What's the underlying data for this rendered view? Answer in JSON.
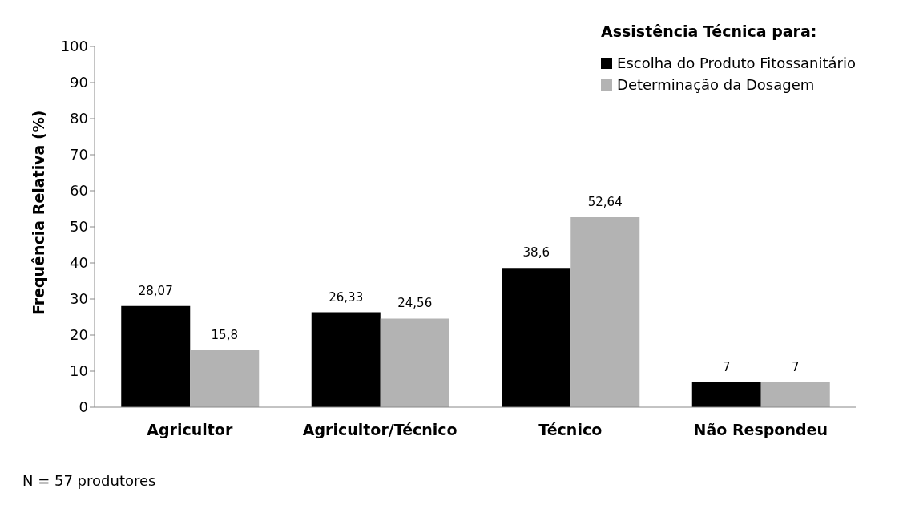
{
  "chart_data": {
    "type": "bar",
    "ylabel": "Frequência Relativa (%)",
    "legend_title": "Assistência Técnica para:",
    "categories": [
      "Agricultor",
      "Agricultor/Técnico",
      "Técnico",
      "Não Respondeu"
    ],
    "series": [
      {
        "name": "Escolha do Produto Fitossanitário",
        "color": "#000000",
        "values": [
          28.07,
          26.33,
          38.6,
          7
        ],
        "value_labels": [
          "28,07",
          "26,33",
          "38,6",
          "7"
        ]
      },
      {
        "name": "Determinação da Dosagem",
        "color": "#b3b3b3",
        "values": [
          15.8,
          24.56,
          52.64,
          7
        ],
        "value_labels": [
          "15,8",
          "24,56",
          "52,64",
          "7"
        ]
      }
    ],
    "ylim": [
      0,
      100
    ],
    "yticks": [
      0,
      10,
      20,
      30,
      40,
      50,
      60,
      70,
      80,
      90,
      100
    ],
    "grid": false,
    "legend": "top right",
    "annotations": [
      "N = 57 produtores"
    ]
  }
}
